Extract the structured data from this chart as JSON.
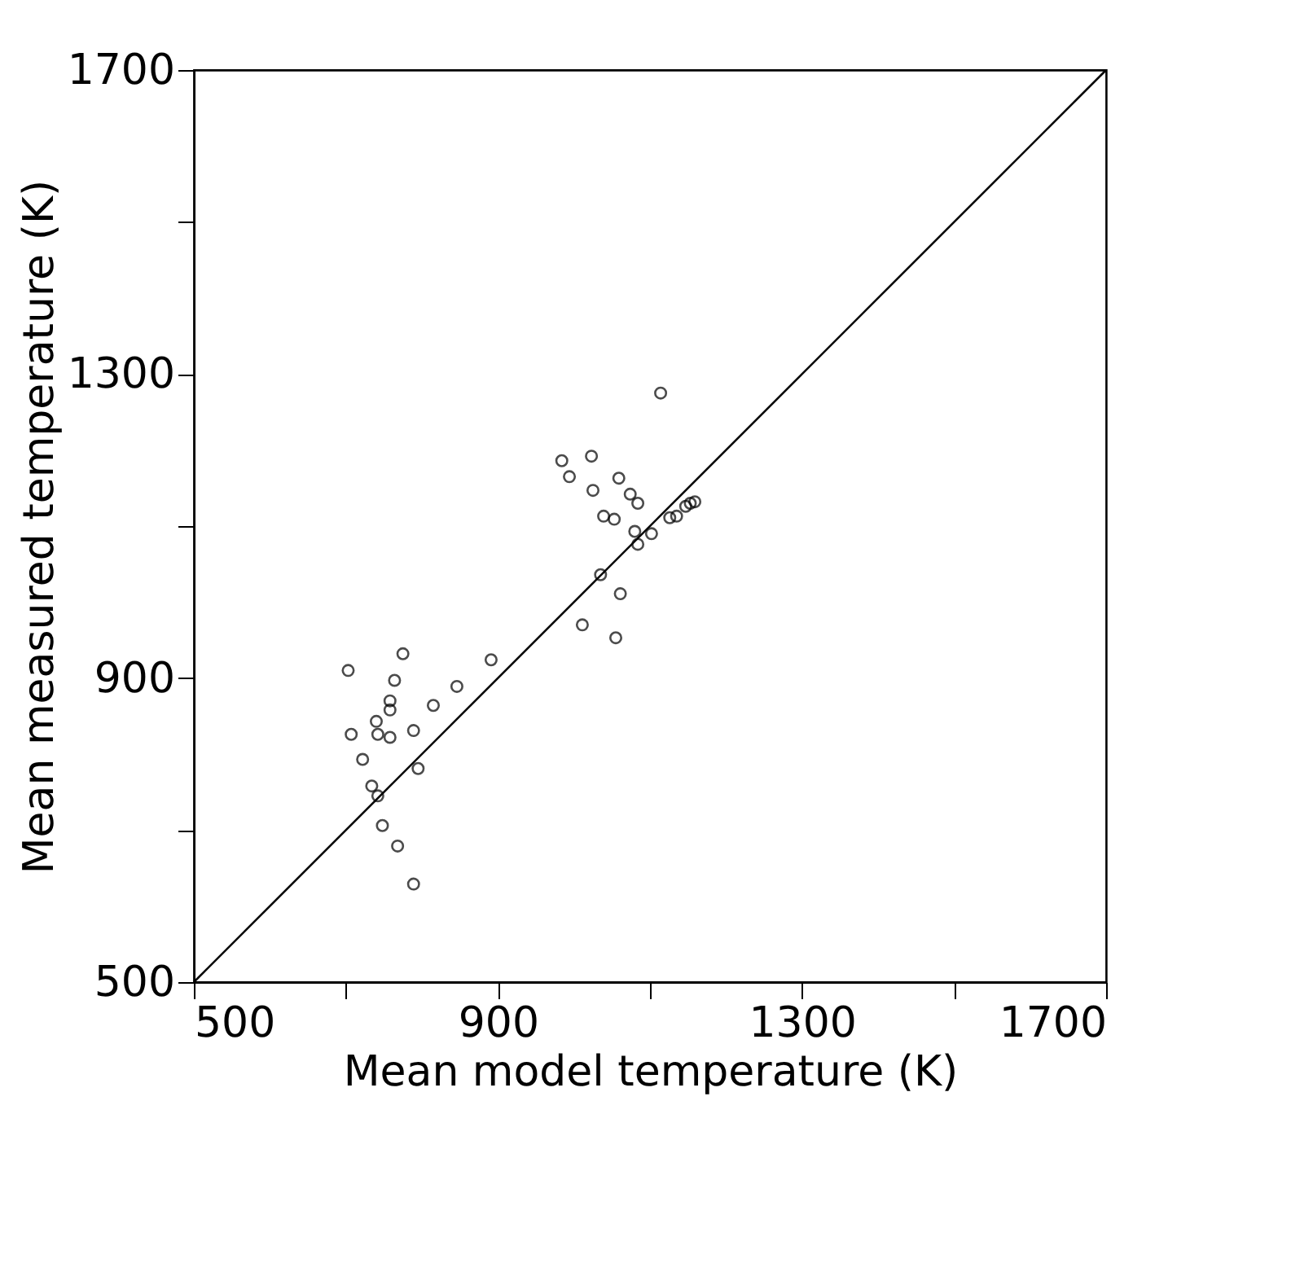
{
  "chart_data": {
    "type": "scatter",
    "xlabel": "Mean model temperature (K)",
    "ylabel": "Mean measured temperature (K)",
    "xlim": [
      500,
      1700
    ],
    "ylim": [
      500,
      1700
    ],
    "xticks": [
      500,
      {
        "value": 700,
        "label": null
      },
      900,
      {
        "value": 1100,
        "label": null
      },
      1300,
      {
        "value": 1500,
        "label": null
      },
      1700
    ],
    "yticks": [
      500,
      {
        "value": 700,
        "label": null
      },
      900,
      {
        "value": 1100,
        "label": null
      },
      1300,
      {
        "value": 1500,
        "label": null
      },
      1700
    ],
    "grid": false,
    "series": [
      {
        "color": "#000000",
        "marker": "circle",
        "x": [
          775,
          703,
          764,
          758,
          758,
          815,
          846,
          891,
          740,
          707,
          742,
          758,
          789,
          722,
          795,
          734,
          742,
          748,
          768,
          789,
          1114,
          984,
          1023,
          994,
          1025,
          1059,
          1074,
          1084,
          1039,
          1053,
          1080,
          1102,
          1084,
          1126,
          1135,
          1147,
          1153,
          1159,
          1035,
          1061,
          1011,
          1055
        ],
        "values": [
          932,
          910,
          897,
          870,
          858,
          864,
          889,
          924,
          843,
          826,
          826,
          822,
          831,
          793,
          781,
          758,
          745,
          706,
          679,
          629,
          1275,
          1186,
          1192,
          1165,
          1147,
          1163,
          1142,
          1130,
          1113,
          1109,
          1093,
          1090,
          1076,
          1111,
          1113,
          1126,
          1130,
          1132,
          1036,
          1011,
          970,
          953
        ]
      },
      {
        "type": "line",
        "color": "#000000",
        "line_style": "solid",
        "x": [
          500,
          1700
        ],
        "values": [
          500,
          1700
        ]
      }
    ]
  }
}
